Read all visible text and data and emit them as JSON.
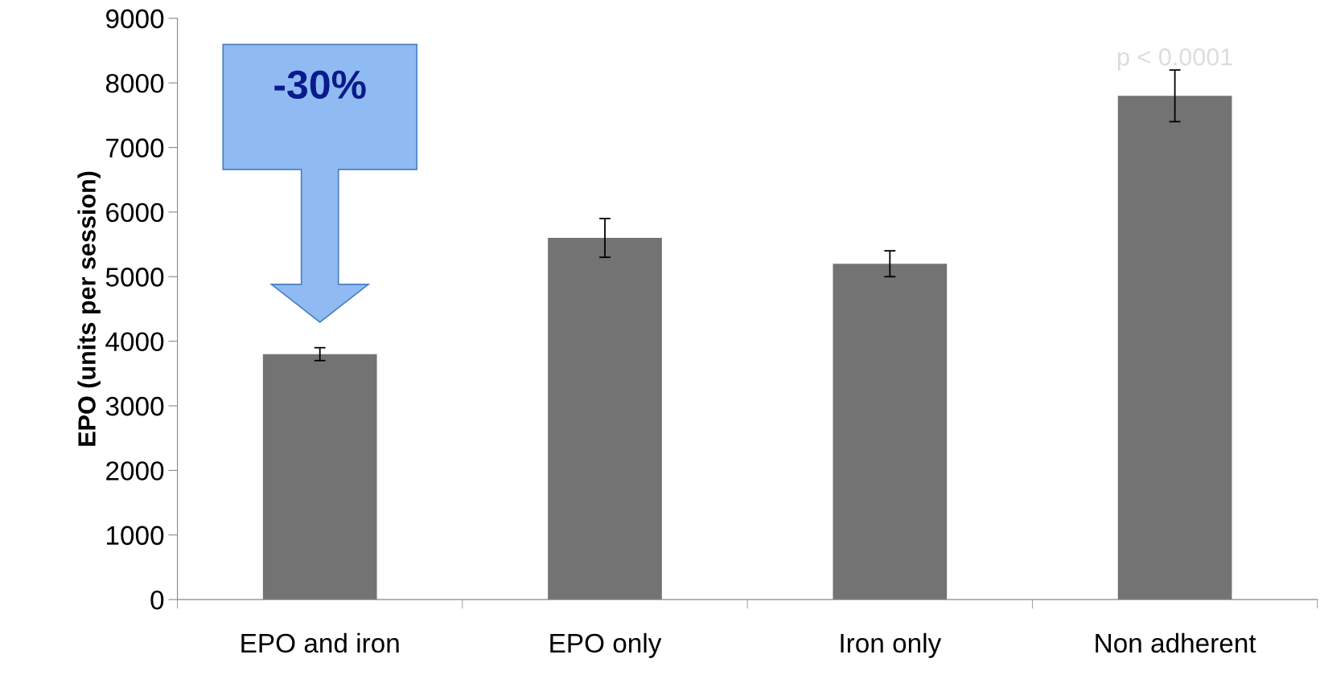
{
  "chart_data": {
    "type": "bar",
    "ylabel": "EPO (units per session)",
    "categories": [
      "EPO and iron",
      "EPO only",
      "Iron only",
      "Non adherent"
    ],
    "values": [
      3800,
      5600,
      5200,
      7800
    ],
    "errors": [
      100,
      300,
      200,
      400
    ],
    "color": "#737373",
    "ylim": [
      0,
      9000
    ],
    "yticks": [
      0,
      1000,
      2000,
      3000,
      4000,
      5000,
      6000,
      7000,
      8000,
      9000
    ],
    "grid": false,
    "annotations": [
      "-30%",
      "p < 0.0001"
    ]
  }
}
